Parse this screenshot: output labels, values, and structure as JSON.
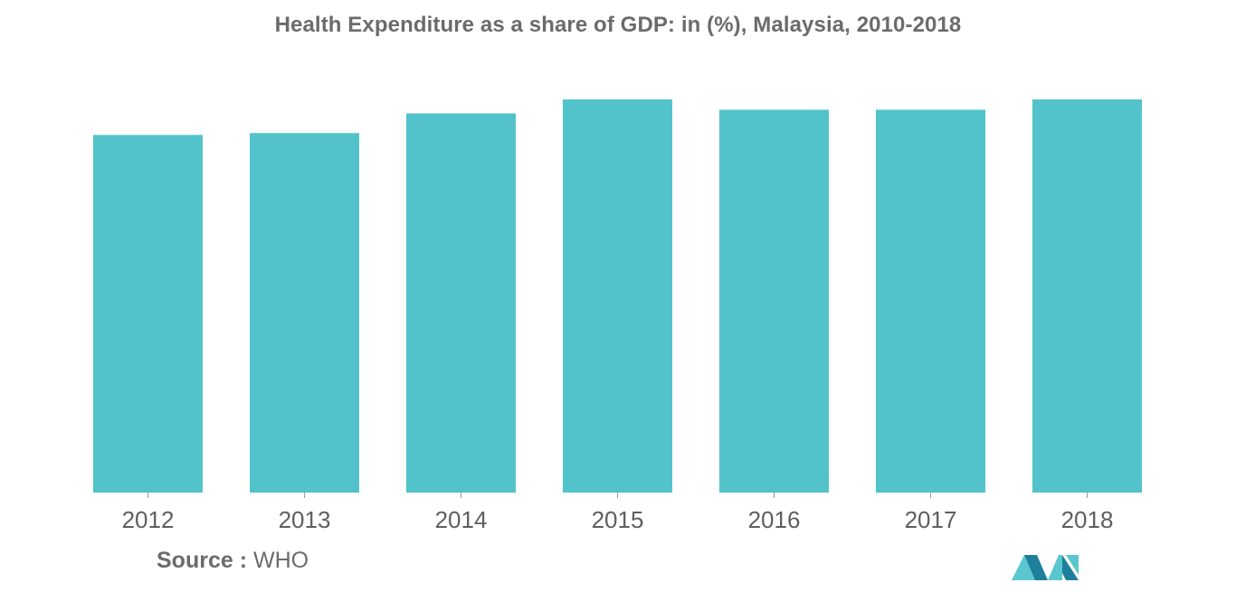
{
  "chart_data": {
    "type": "bar",
    "title": "Health Expenditure as a share of GDP: in (%), Malaysia, 2010-2018",
    "categories": [
      "2012",
      "2013",
      "2014",
      "2015",
      "2016",
      "2017",
      "2018"
    ],
    "values": [
      3.83,
      3.85,
      4.06,
      4.21,
      4.1,
      4.1,
      4.21
    ],
    "ylim": [
      0,
      4.21
    ],
    "xlabel": "",
    "ylabel": "",
    "grid": false,
    "legend": "none",
    "bar_color": "#52c3ca"
  },
  "source": {
    "label": "Source :",
    "value": "WHO"
  },
  "logo": {
    "icon": "mordor-intelligence-logo-icon",
    "color_dark": "#1e7f9c",
    "color_light": "#5ac7cf"
  }
}
